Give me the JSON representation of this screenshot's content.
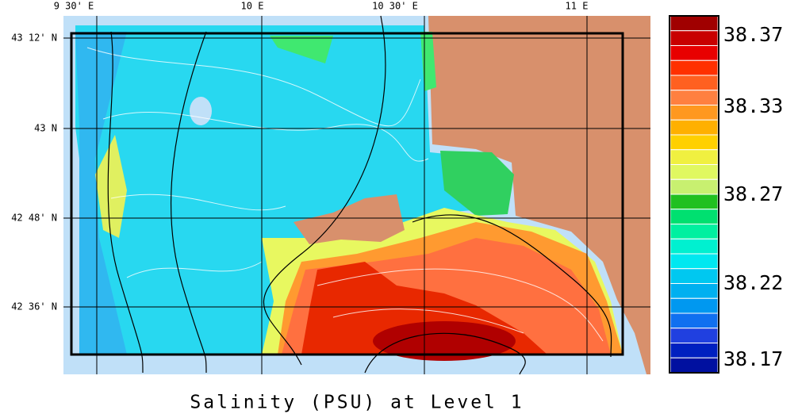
{
  "title": "Salinity (PSU) at Level 1",
  "map": {
    "lon_labels": [
      "9 30' E",
      "10 E",
      "10 30' E",
      "11 E"
    ],
    "lat_labels": [
      "43 12' N",
      "43 N",
      "42 48' N",
      "42 36' N"
    ]
  },
  "colorbar": {
    "labels": [
      "38.37",
      "38.33",
      "38.27",
      "38.22",
      "38.17"
    ]
  }
}
